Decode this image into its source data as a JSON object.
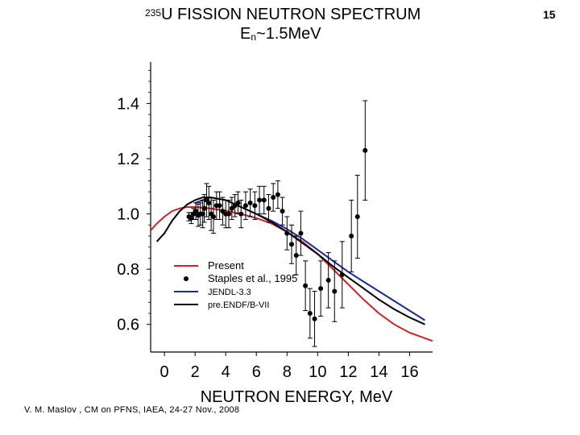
{
  "slide": {
    "title_sup": "235",
    "title_main": "U FISSION NEUTRON SPECTRUM",
    "title_line2_pre": "E",
    "title_line2_sub": "n",
    "title_line2_post": "~1.5MeV",
    "slide_number": "15",
    "footer": "V. M. Maslov ,   CM on PFNS, IAEA, 24-27 Nov., 2008"
  },
  "chart_data": {
    "type": "scatter",
    "xlabel": "NEUTRON ENERGY, MeV",
    "ylabel": "",
    "xlim": [
      -0.9,
      17.5
    ],
    "ylim": [
      0.5,
      1.55
    ],
    "x_ticks": [
      "0",
      "2",
      "4",
      "6",
      "8",
      "10",
      "12",
      "14",
      "16"
    ],
    "x_tick_values": [
      0,
      2,
      4,
      6,
      8,
      10,
      12,
      14,
      16
    ],
    "y_ticks": [
      "0.6",
      "0.8",
      "1.0",
      "1.2",
      "1.4"
    ],
    "y_tick_values": [
      0.6,
      0.8,
      1.0,
      1.2,
      1.4
    ],
    "legend": [
      {
        "label": "Present",
        "color": "#d42020",
        "kind": "line"
      },
      {
        "label": "Staples et al., 1995",
        "color": "#000000",
        "kind": "marker"
      },
      {
        "label": "JENDL-3.3",
        "color": "#1a2a9a",
        "kind": "line"
      },
      {
        "label": "pre.ENDF/B-VII",
        "color": "#000000",
        "kind": "line"
      }
    ],
    "series": [
      {
        "name": "Present",
        "color": "#d42020",
        "points": [
          [
            -0.9,
            0.94
          ],
          [
            -0.5,
            0.965
          ],
          [
            0,
            0.99
          ],
          [
            0.5,
            1.01
          ],
          [
            1,
            1.02
          ],
          [
            1.5,
            1.025
          ],
          [
            2,
            1.025
          ],
          [
            3,
            1.02
          ],
          [
            4,
            1.012
          ],
          [
            5,
            1.0
          ],
          [
            6,
            0.985
          ],
          [
            7,
            0.965
          ],
          [
            8,
            0.935
          ],
          [
            9,
            0.9
          ],
          [
            10,
            0.855
          ],
          [
            11,
            0.8
          ],
          [
            12,
            0.745
          ],
          [
            13,
            0.69
          ],
          [
            14,
            0.64
          ],
          [
            15,
            0.6
          ],
          [
            16,
            0.57
          ],
          [
            17.5,
            0.54
          ]
        ]
      },
      {
        "name": "JENDL-3.3",
        "color": "#1a2a9a",
        "points": [
          [
            2,
            1.04
          ],
          [
            3,
            1.06
          ],
          [
            4,
            1.05
          ],
          [
            5,
            1.025
          ],
          [
            6,
            1.0
          ],
          [
            7,
            0.975
          ],
          [
            8,
            0.945
          ],
          [
            9,
            0.91
          ],
          [
            10,
            0.87
          ],
          [
            11,
            0.83
          ],
          [
            12,
            0.79
          ],
          [
            13,
            0.755
          ],
          [
            14,
            0.72
          ],
          [
            15,
            0.685
          ],
          [
            16,
            0.65
          ],
          [
            17,
            0.615
          ]
        ]
      },
      {
        "name": "pre.ENDF/B-VII",
        "color": "#000000",
        "points": [
          [
            -0.5,
            0.9
          ],
          [
            0,
            0.93
          ],
          [
            0.5,
            0.975
          ],
          [
            1,
            1.01
          ],
          [
            1.5,
            1.035
          ],
          [
            2,
            1.05
          ],
          [
            2.5,
            1.06
          ],
          [
            3,
            1.06
          ],
          [
            4,
            1.05
          ],
          [
            5,
            1.025
          ],
          [
            6,
            1.0
          ],
          [
            7,
            0.97
          ],
          [
            8,
            0.935
          ],
          [
            9,
            0.895
          ],
          [
            10,
            0.855
          ],
          [
            11,
            0.81
          ],
          [
            12,
            0.77
          ],
          [
            13,
            0.73
          ],
          [
            14,
            0.69
          ],
          [
            15,
            0.655
          ],
          [
            16,
            0.625
          ],
          [
            17,
            0.6
          ]
        ]
      },
      {
        "name": "Staples et al., 1995",
        "color": "#000000",
        "points": [
          [
            1.6,
            0.99,
            0.015
          ],
          [
            1.75,
            0.985,
            0.02
          ],
          [
            1.9,
            1.0,
            0.02
          ],
          [
            2.05,
            1.01,
            0.03
          ],
          [
            2.2,
            0.995,
            0.04
          ],
          [
            2.35,
            1.0,
            0.04
          ],
          [
            2.5,
            1.0,
            0.05
          ],
          [
            2.6,
            1.02,
            0.05
          ],
          [
            2.75,
            1.05,
            0.06
          ],
          [
            2.9,
            1.04,
            0.06
          ],
          [
            3.05,
            1.0,
            0.06
          ],
          [
            3.2,
            0.99,
            0.06
          ],
          [
            3.4,
            1.03,
            0.05
          ],
          [
            3.6,
            1.03,
            0.05
          ],
          [
            3.8,
            1.01,
            0.05
          ],
          [
            4.0,
            1.0,
            0.05
          ],
          [
            4.2,
            1.0,
            0.05
          ],
          [
            4.4,
            1.02,
            0.04
          ],
          [
            4.6,
            1.03,
            0.04
          ],
          [
            4.8,
            1.04,
            0.04
          ],
          [
            5.0,
            1.0,
            0.05
          ],
          [
            5.3,
            1.03,
            0.05
          ],
          [
            5.6,
            1.04,
            0.05
          ],
          [
            5.9,
            1.03,
            0.05
          ],
          [
            6.2,
            1.05,
            0.05
          ],
          [
            6.5,
            1.05,
            0.05
          ],
          [
            6.8,
            1.02,
            0.05
          ],
          [
            7.1,
            1.06,
            0.05
          ],
          [
            7.4,
            1.07,
            0.05
          ],
          [
            7.7,
            1.01,
            0.05
          ],
          [
            8.0,
            0.93,
            0.06
          ],
          [
            8.3,
            0.89,
            0.07
          ],
          [
            8.6,
            0.85,
            0.07
          ],
          [
            8.9,
            0.93,
            0.08
          ],
          [
            9.2,
            0.74,
            0.09
          ],
          [
            9.5,
            0.64,
            0.09
          ],
          [
            9.8,
            0.62,
            0.1
          ],
          [
            10.2,
            0.73,
            0.1
          ],
          [
            10.7,
            0.76,
            0.1
          ],
          [
            11.1,
            0.72,
            0.11
          ],
          [
            11.6,
            0.78,
            0.12
          ],
          [
            12.2,
            0.92,
            0.13
          ],
          [
            12.6,
            0.99,
            0.15
          ],
          [
            13.1,
            1.23,
            0.18
          ]
        ]
      }
    ]
  }
}
